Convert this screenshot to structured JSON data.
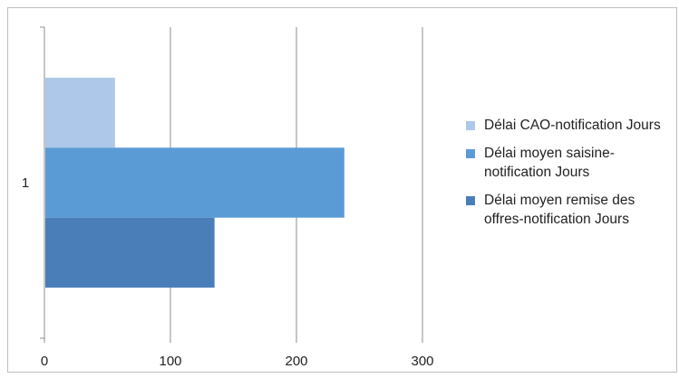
{
  "chart_data": {
    "type": "bar",
    "orientation": "horizontal",
    "categories": [
      "1"
    ],
    "series": [
      {
        "name": "Délai CAO-notification Jours",
        "values": [
          56
        ],
        "color": "#adc8e8"
      },
      {
        "name": "Délai moyen saisine-notification Jours",
        "values": [
          238
        ],
        "color": "#5b9bd5"
      },
      {
        "name": "Délai moyen remise des offres-notification Jours",
        "values": [
          135
        ],
        "color": "#4a7eb8"
      }
    ],
    "x_ticks": [
      "0",
      "100",
      "200",
      "300"
    ],
    "xlim": [
      0,
      300
    ],
    "grid": true,
    "legend_position": "right",
    "title": "",
    "xlabel": "",
    "ylabel": ""
  }
}
